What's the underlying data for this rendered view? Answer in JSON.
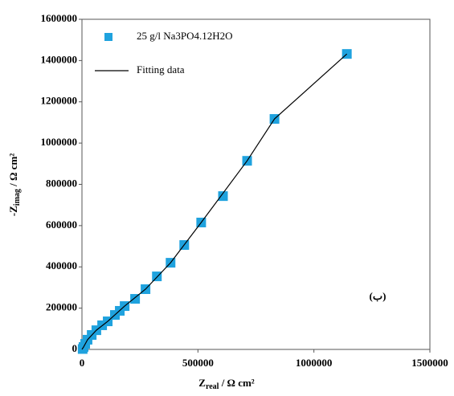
{
  "chart_data": {
    "type": "scatter",
    "x_label": {
      "main": "Z",
      "sub": "real",
      "rest": " / Ω cm²"
    },
    "y_label": {
      "main": "-Z",
      "sub": "imag",
      "rest": " / Ω cm²"
    },
    "annotation": "(ب)",
    "xlim": [
      0,
      1500000
    ],
    "xticks": [
      0,
      500000,
      1000000,
      1500000
    ],
    "ylim": [
      0,
      1600000
    ],
    "yticks": [
      0,
      200000,
      400000,
      600000,
      800000,
      1000000,
      1200000,
      1400000,
      1600000
    ],
    "legend": "upper left",
    "series": [
      {
        "name": "25 g/l Na3PO4.12H2O",
        "color": "#1fa2de",
        "marker": "square",
        "x": [
          3000,
          7000,
          14000,
          24000,
          42000,
          62000,
          87000,
          111000,
          142000,
          163000,
          184000,
          229000,
          274000,
          323000,
          382000,
          441000,
          514000,
          608000,
          712000,
          830000,
          1142000
        ],
        "values": [
          2000,
          12000,
          27000,
          47000,
          70000,
          93000,
          117000,
          136000,
          167000,
          187000,
          210000,
          245000,
          292000,
          354000,
          420000,
          506000,
          615000,
          743000,
          914000,
          1117000,
          1432000
        ]
      },
      {
        "name": "Fitting data",
        "color": "#000000",
        "marker": "line",
        "x": [
          0,
          7000,
          24000,
          62000,
          111000,
          184000,
          274000,
          382000,
          514000,
          712000,
          830000,
          1142000
        ],
        "values": [
          0,
          12000,
          47000,
          93000,
          136000,
          210000,
          292000,
          420000,
          615000,
          914000,
          1117000,
          1432000
        ]
      }
    ]
  }
}
